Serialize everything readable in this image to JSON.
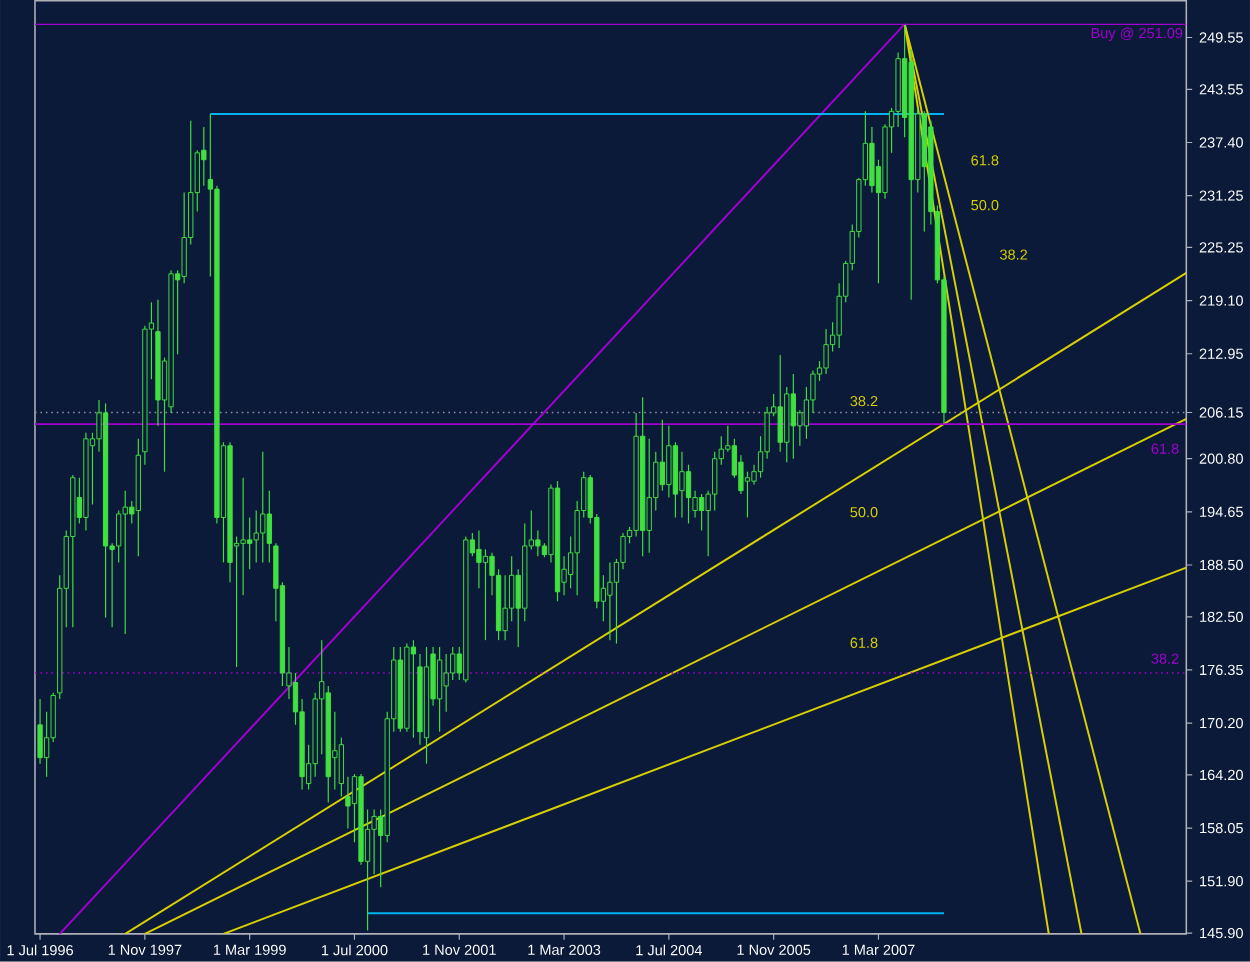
{
  "chart_data": {
    "type": "candlestick",
    "color": "#40e040",
    "x": [
      "1996-07",
      "1996-08",
      "1996-09",
      "1996-10",
      "1996-11",
      "1996-12",
      "1997-01",
      "1997-02",
      "1997-03",
      "1997-04",
      "1997-05",
      "1997-06",
      "1997-07",
      "1997-08",
      "1997-09",
      "1997-10",
      "1997-11",
      "1997-12",
      "1998-01",
      "1998-02",
      "1998-03",
      "1998-04",
      "1998-05",
      "1998-06",
      "1998-07",
      "1998-08",
      "1998-09",
      "1998-10",
      "1998-11",
      "1998-12",
      "1999-01",
      "1999-02",
      "1999-03",
      "1999-04",
      "1999-05",
      "1999-06",
      "1999-07",
      "1999-08",
      "1999-09",
      "1999-10",
      "1999-11",
      "1999-12",
      "2000-01",
      "2000-02",
      "2000-03",
      "2000-04",
      "2000-05",
      "2000-06",
      "2000-07",
      "2000-08",
      "2000-09",
      "2000-10",
      "2000-11",
      "2000-12",
      "2001-01",
      "2001-02",
      "2001-03",
      "2001-04",
      "2001-05",
      "2001-06",
      "2001-07",
      "2001-08",
      "2001-09",
      "2001-10",
      "2001-11",
      "2001-12",
      "2002-01",
      "2002-02",
      "2002-03",
      "2002-04",
      "2002-05",
      "2002-06",
      "2002-07",
      "2002-08",
      "2002-09",
      "2002-10",
      "2002-11",
      "2002-12",
      "2003-01",
      "2003-02",
      "2003-03",
      "2003-04",
      "2003-05",
      "2003-06",
      "2003-07",
      "2003-08",
      "2003-09",
      "2003-10",
      "2003-11",
      "2003-12",
      "2004-01",
      "2004-02",
      "2004-03",
      "2004-04",
      "2004-05",
      "2004-06",
      "2004-07",
      "2004-08",
      "2004-09",
      "2004-10",
      "2004-11",
      "2004-12",
      "2005-01",
      "2005-02",
      "2005-03",
      "2005-04",
      "2005-05",
      "2005-06",
      "2005-07",
      "2005-08",
      "2005-09",
      "2005-10",
      "2005-11",
      "2005-12",
      "2006-01",
      "2006-02",
      "2006-03",
      "2006-04",
      "2006-05",
      "2006-06",
      "2006-07",
      "2006-08",
      "2006-09",
      "2006-10",
      "2006-11",
      "2006-12",
      "2007-01",
      "2007-02",
      "2007-03",
      "2007-04",
      "2007-05",
      "2007-06",
      "2007-07",
      "2007-08",
      "2007-09",
      "2007-10",
      "2007-11",
      "2007-12",
      "2008-01"
    ],
    "ohlc": [
      [
        170.0,
        173.0,
        165.5,
        166.2
      ],
      [
        166.2,
        171.5,
        164.0,
        168.5
      ],
      [
        168.5,
        173.7,
        168.0,
        173.4
      ],
      [
        173.7,
        187.3,
        173.0,
        185.8
      ],
      [
        185.8,
        192.5,
        181.3,
        191.8
      ],
      [
        191.8,
        198.9,
        181.3,
        198.6
      ],
      [
        196.3,
        198.6,
        193.3,
        194.0
      ],
      [
        194.0,
        203.8,
        192.5,
        203.1
      ],
      [
        202.3,
        203.8,
        195.5,
        203.1
      ],
      [
        203.1,
        207.6,
        201.6,
        206.1
      ],
      [
        206.1,
        207.2,
        182.4,
        190.7
      ],
      [
        190.7,
        191.0,
        181.3,
        190.3
      ],
      [
        190.7,
        194.8,
        188.8,
        194.4
      ],
      [
        194.4,
        197.1,
        180.5,
        195.2
      ],
      [
        195.2,
        195.9,
        193.3,
        194.4
      ],
      [
        194.8,
        203.1,
        189.5,
        201.2
      ],
      [
        201.6,
        216.2,
        200.1,
        215.8
      ],
      [
        215.8,
        218.9,
        210.0,
        216.5
      ],
      [
        215.5,
        219.2,
        204.6,
        207.6
      ],
      [
        207.6,
        212.5,
        199.3,
        212.1
      ],
      [
        206.8,
        222.6,
        206.1,
        222.2
      ],
      [
        222.2,
        222.6,
        212.9,
        221.5
      ],
      [
        221.9,
        231.6,
        221.1,
        226.4
      ],
      [
        226.4,
        239.9,
        225.6,
        231.6
      ],
      [
        231.6,
        236.5,
        229.4,
        236.2
      ],
      [
        236.5,
        239.2,
        232.4,
        235.4
      ],
      [
        233.1,
        240.7,
        221.9,
        232.0
      ],
      [
        232.0,
        232.4,
        193.3,
        194.0
      ],
      [
        194.0,
        202.7,
        188.8,
        202.3
      ],
      [
        202.3,
        202.7,
        186.5,
        188.8
      ],
      [
        190.7,
        191.8,
        176.7,
        191.0
      ],
      [
        191.0,
        198.6,
        185.0,
        191.4
      ],
      [
        191.4,
        194.0,
        188.0,
        191.0
      ],
      [
        191.4,
        194.8,
        188.8,
        192.2
      ],
      [
        192.2,
        201.6,
        188.8,
        194.4
      ],
      [
        194.4,
        197.1,
        188.8,
        191.0
      ],
      [
        190.7,
        191.0,
        182.0,
        185.8
      ],
      [
        186.1,
        186.5,
        174.5,
        176.0
      ],
      [
        174.5,
        179.0,
        173.0,
        176.0
      ],
      [
        174.9,
        176.0,
        170.0,
        171.5
      ],
      [
        171.5,
        173.0,
        162.5,
        164.0
      ],
      [
        163.2,
        167.7,
        162.5,
        165.5
      ],
      [
        165.5,
        173.7,
        164.0,
        173.0
      ],
      [
        173.0,
        179.8,
        166.6,
        175.0
      ],
      [
        173.7,
        174.5,
        161.0,
        164.0
      ],
      [
        166.2,
        171.5,
        162.5,
        167.0
      ],
      [
        163.2,
        168.5,
        161.7,
        167.7
      ],
      [
        161.7,
        164.0,
        158.0,
        160.6
      ],
      [
        160.9,
        164.3,
        156.4,
        164.0
      ],
      [
        164.0,
        164.3,
        153.8,
        154.2
      ],
      [
        154.2,
        160.2,
        146.2,
        157.9
      ],
      [
        157.9,
        160.2,
        152.7,
        159.4
      ],
      [
        159.4,
        160.2,
        151.2,
        157.2
      ],
      [
        157.2,
        171.5,
        156.4,
        170.7
      ],
      [
        170.7,
        179.0,
        169.2,
        177.5
      ],
      [
        177.5,
        179.0,
        169.2,
        169.6
      ],
      [
        169.6,
        179.4,
        169.2,
        179.0
      ],
      [
        179.0,
        179.8,
        168.5,
        178.2
      ],
      [
        176.7,
        178.2,
        167.7,
        169.2
      ],
      [
        168.5,
        179.0,
        165.5,
        176.7
      ],
      [
        178.2,
        179.0,
        172.2,
        173.0
      ],
      [
        173.0,
        179.0,
        169.2,
        177.5
      ],
      [
        174.5,
        178.2,
        171.5,
        176.0
      ],
      [
        176.0,
        179.0,
        175.2,
        178.2
      ],
      [
        178.2,
        179.0,
        175.2,
        176.0
      ],
      [
        175.2,
        191.8,
        174.9,
        191.4
      ],
      [
        191.4,
        192.2,
        189.5,
        189.9
      ],
      [
        190.3,
        192.5,
        185.8,
        188.8
      ],
      [
        188.8,
        190.3,
        179.8,
        189.5
      ],
      [
        189.5,
        189.9,
        185.0,
        187.3
      ],
      [
        187.3,
        188.0,
        179.8,
        180.9
      ],
      [
        180.9,
        187.3,
        179.8,
        183.5
      ],
      [
        183.5,
        189.5,
        182.0,
        187.3
      ],
      [
        187.3,
        188.0,
        179.0,
        183.5
      ],
      [
        183.5,
        193.3,
        182.0,
        190.7
      ],
      [
        190.7,
        194.8,
        190.3,
        191.4
      ],
      [
        191.4,
        192.5,
        189.5,
        190.7
      ],
      [
        190.7,
        191.0,
        189.4,
        189.7
      ],
      [
        189.7,
        197.8,
        188.8,
        197.4
      ],
      [
        197.4,
        198.2,
        184.3,
        185.4
      ],
      [
        186.5,
        189.5,
        185.0,
        188.0
      ],
      [
        187.4,
        191.8,
        185.8,
        189.9
      ],
      [
        189.9,
        195.9,
        185.0,
        194.8
      ],
      [
        194.8,
        199.3,
        194.0,
        198.6
      ],
      [
        198.6,
        198.9,
        193.3,
        194.0
      ],
      [
        194.0,
        194.4,
        183.5,
        184.3
      ],
      [
        184.3,
        187.3,
        182.0,
        185.8
      ],
      [
        185.0,
        188.8,
        179.8,
        186.5
      ],
      [
        186.5,
        189.2,
        179.4,
        188.8
      ],
      [
        188.8,
        192.2,
        188.0,
        191.8
      ],
      [
        191.8,
        192.9,
        191.0,
        192.5
      ],
      [
        192.5,
        206.1,
        191.8,
        203.4
      ],
      [
        203.4,
        207.9,
        189.5,
        192.5
      ],
      [
        192.5,
        203.1,
        189.9,
        196.3
      ],
      [
        196.3,
        201.6,
        194.8,
        200.4
      ],
      [
        200.4,
        205.3,
        197.1,
        197.8
      ],
      [
        197.8,
        204.6,
        196.3,
        202.3
      ],
      [
        202.3,
        202.7,
        194.0,
        196.7
      ],
      [
        197.1,
        201.6,
        194.0,
        199.3
      ],
      [
        199.3,
        200.1,
        193.3,
        196.3
      ],
      [
        194.8,
        197.1,
        194.0,
        196.3
      ],
      [
        196.3,
        196.7,
        192.5,
        194.8
      ],
      [
        194.8,
        197.1,
        189.5,
        196.7
      ],
      [
        196.7,
        201.6,
        194.8,
        200.8
      ],
      [
        200.8,
        203.4,
        200.1,
        201.9
      ],
      [
        201.9,
        204.6,
        201.6,
        202.3
      ],
      [
        202.3,
        203.1,
        198.6,
        198.9
      ],
      [
        200.4,
        201.2,
        196.7,
        197.1
      ],
      [
        198.2,
        199.3,
        194.0,
        198.6
      ],
      [
        198.2,
        200.1,
        197.8,
        199.3
      ],
      [
        199.3,
        203.4,
        198.6,
        201.6
      ],
      [
        201.6,
        206.8,
        200.8,
        206.1
      ],
      [
        206.1,
        208.3,
        205.7,
        206.8
      ],
      [
        206.8,
        212.8,
        201.6,
        202.7
      ],
      [
        202.7,
        209.1,
        200.4,
        208.3
      ],
      [
        208.3,
        210.6,
        200.8,
        204.6
      ],
      [
        204.6,
        206.4,
        202.3,
        206.1
      ],
      [
        204.6,
        209.1,
        203.1,
        207.6
      ],
      [
        207.6,
        211.0,
        206.1,
        210.6
      ],
      [
        210.6,
        212.1,
        209.8,
        211.3
      ],
      [
        211.3,
        215.8,
        210.6,
        214.0
      ],
      [
        214.0,
        216.6,
        213.2,
        215.1
      ],
      [
        215.1,
        221.1,
        213.6,
        219.6
      ],
      [
        219.6,
        223.7,
        218.9,
        223.4
      ],
      [
        223.4,
        227.9,
        222.6,
        227.1
      ],
      [
        227.1,
        233.3,
        226.4,
        233.1
      ],
      [
        233.1,
        241.0,
        232.4,
        237.3
      ],
      [
        237.3,
        239.2,
        231.6,
        232.4
      ],
      [
        234.6,
        235.4,
        221.1,
        231.6
      ],
      [
        231.6,
        239.5,
        230.9,
        239.2
      ],
      [
        239.2,
        241.4,
        236.2,
        241.0
      ],
      [
        241.0,
        247.8,
        239.2,
        247.1
      ],
      [
        247.1,
        251.0,
        238.0,
        240.3
      ],
      [
        246.7,
        248.2,
        219.2,
        233.1
      ],
      [
        233.1,
        241.4,
        231.6,
        240.7
      ],
      [
        240.7,
        241.0,
        227.1,
        234.6
      ],
      [
        239.2,
        239.9,
        227.9,
        229.4
      ],
      [
        229.4,
        230.1,
        221.1,
        221.5
      ],
      [
        221.5,
        221.9,
        204.9,
        206.15
      ]
    ],
    "series": [
      {
        "type": "line",
        "color": "#a000d0",
        "x": [
          "1996-10",
          "2007-07"
        ],
        "values": [
          145.8,
          251.1
        ]
      },
      {
        "type": "line",
        "color": "#00b4f0",
        "x": [
          "1998-09",
          "2008-01"
        ],
        "values": [
          240.7,
          240.7
        ]
      },
      {
        "type": "line",
        "color": "#00b4f0",
        "x": [
          "2000-09",
          "2008-01"
        ],
        "values": [
          148.2,
          148.2
        ]
      },
      {
        "type": "line",
        "color": "#d8d000",
        "x": [
          "1997-08",
          "2011-02"
        ],
        "values": [
          145.8,
          222.3
        ]
      },
      {
        "type": "line",
        "color": "#d8d000",
        "x": [
          "1997-11",
          "2011-02"
        ],
        "values": [
          145.8,
          205.4
        ]
      },
      {
        "type": "line",
        "color": "#d8d000",
        "x": [
          "1998-11",
          "2011-02"
        ],
        "values": [
          145.8,
          188.2
        ]
      },
      {
        "type": "line",
        "color": "#d8d000",
        "x": [
          "2007-07",
          "2009-05"
        ],
        "values": [
          251.1,
          145.8
        ]
      },
      {
        "type": "line",
        "color": "#d8d000",
        "x": [
          "2007-07",
          "2009-10"
        ],
        "values": [
          251.1,
          145.8
        ]
      },
      {
        "type": "line",
        "color": "#d8d000",
        "x": [
          "2007-07",
          "2010-07"
        ],
        "values": [
          251.1,
          145.8
        ]
      }
    ],
    "xlim": [
      "1996-06-08",
      "2011-02"
    ],
    "ylim": [
      145.8,
      253.8
    ],
    "xticks": [
      {
        "value": "1996-07",
        "label": "1 Jul 1996"
      },
      {
        "value": "1997-11",
        "label": "1 Nov 1997"
      },
      {
        "value": "1999-03",
        "label": "1 Mar 1999"
      },
      {
        "value": "2000-07",
        "label": "1 Jul 2000"
      },
      {
        "value": "2001-11",
        "label": "1 Nov 2001"
      },
      {
        "value": "2003-03",
        "label": "1 Mar 2003"
      },
      {
        "value": "2004-07",
        "label": "1 Jul 2004"
      },
      {
        "value": "2005-11",
        "label": "1 Nov 2005"
      },
      {
        "value": "2007-03",
        "label": "1 Mar 2007"
      }
    ],
    "yticks": [
      249.55,
      243.55,
      {
        "value": 237.4,
        "label": "237.40"
      },
      231.25,
      225.25,
      {
        "value": 219.1,
        "label": "219.10"
      },
      212.95,
      206.15,
      {
        "value": 200.8,
        "label": "200.80"
      },
      194.65,
      {
        "value": 188.5,
        "label": "188.50"
      },
      {
        "value": 182.5,
        "label": "182.50"
      },
      176.35,
      {
        "value": 170.2,
        "label": "170.20"
      },
      {
        "value": 164.2,
        "label": "164.20"
      },
      158.05,
      {
        "value": 151.9,
        "label": "151.90"
      },
      {
        "value": 145.9,
        "label": "145.90"
      }
    ],
    "ref_lines": [
      {
        "axis": "y",
        "value": 251.09,
        "label": "Buy @ 251.09",
        "color": "#a000d0",
        "line_style": "solid"
      },
      {
        "axis": "y",
        "value": 206.15,
        "color": "#9090a0",
        "line_style": "dotted"
      },
      {
        "axis": "y",
        "value": 204.8,
        "color": "#a000d0",
        "line_style": "solid"
      },
      {
        "axis": "y",
        "value": 176.0,
        "color": "#a000d0",
        "line_style": "dotted"
      }
    ],
    "annotations": [
      "38.2",
      "50.0",
      "61.8",
      "61.8",
      "50.0",
      "38.2",
      "61.8",
      "38.2"
    ]
  }
}
